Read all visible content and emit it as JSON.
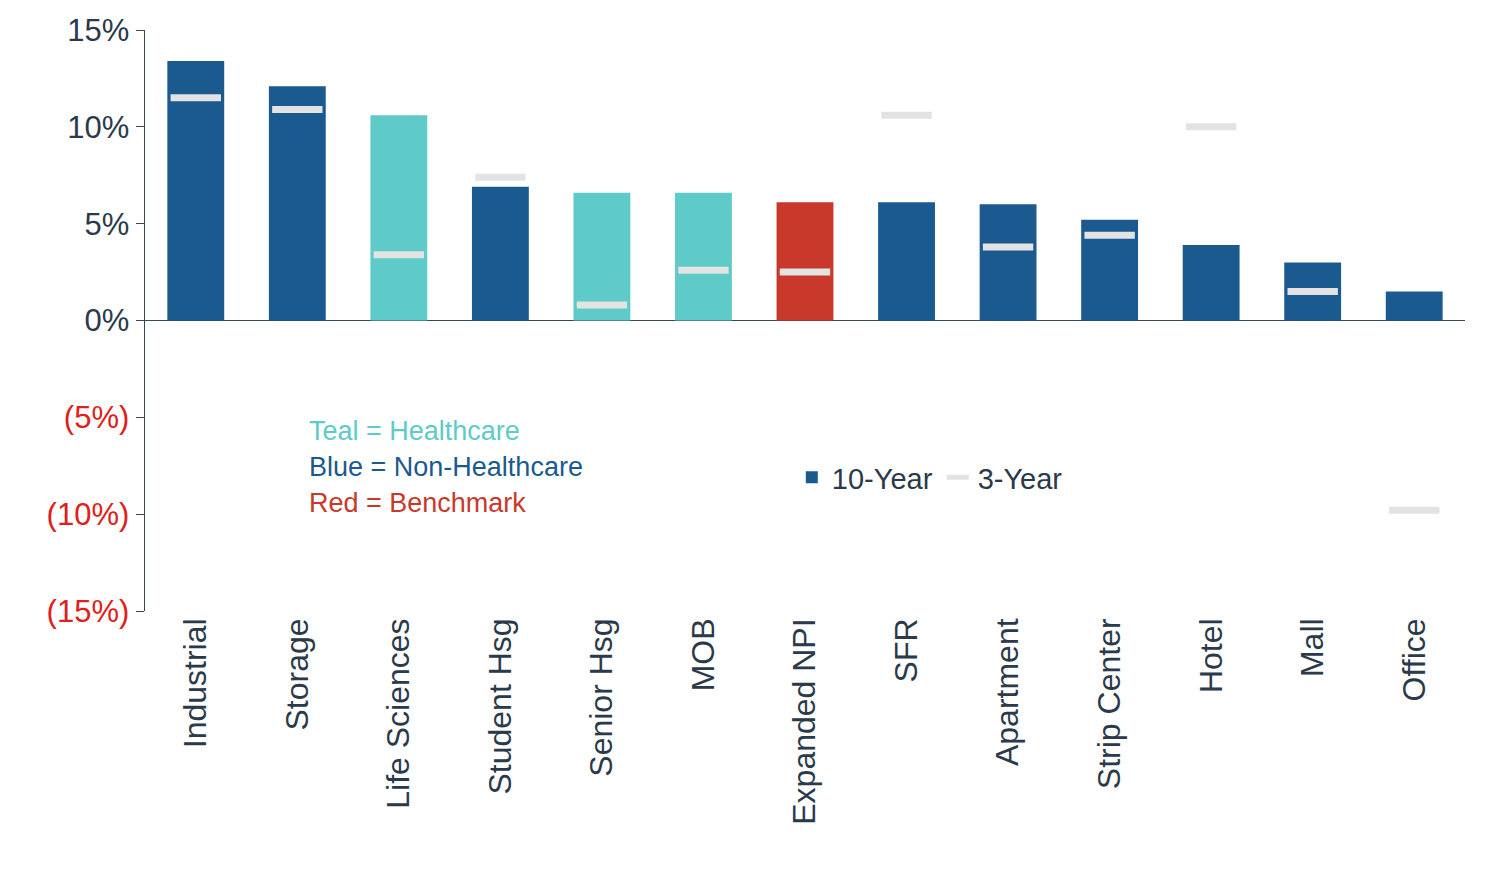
{
  "chart_data": {
    "type": "bar",
    "categories": [
      "Industrial",
      "Storage",
      "Life Sciences",
      "Student Hsg",
      "Senior Hsg",
      "MOB",
      "Expanded NPI",
      "SFR",
      "Apartment",
      "Strip Center",
      "Hotel",
      "Mall",
      "Office"
    ],
    "series": [
      {
        "name": "10-Year",
        "type": "bar",
        "colors": [
          "#1a5a8e",
          "#1a5a8e",
          "#5ecbc8",
          "#1a5a8e",
          "#5ecbc8",
          "#5ecbc8",
          "#c8392b",
          "#1a5a8e",
          "#1a5a8e",
          "#1a5a8e",
          "#1a5a8e",
          "#1a5a8e",
          "#1a5a8e"
        ],
        "values": [
          13.4,
          12.1,
          10.6,
          6.9,
          6.6,
          6.6,
          6.1,
          6.1,
          6.0,
          5.2,
          3.9,
          3.0,
          1.5
        ]
      },
      {
        "name": "3-Year",
        "type": "scatter",
        "marker": "line-ew",
        "color": "#e3e3e3",
        "values": [
          11.5,
          10.9,
          3.4,
          7.4,
          0.8,
          2.6,
          2.5,
          10.6,
          3.8,
          4.4,
          10.0,
          1.5,
          -9.8
        ]
      }
    ],
    "ylim": [
      -15,
      15
    ],
    "yticks": [
      {
        "value": -15,
        "label": "(15%)"
      },
      {
        "value": -10,
        "label": "(10%)"
      },
      {
        "value": -5,
        "label": "(5%)"
      },
      {
        "value": 0,
        "label": "0%"
      },
      {
        "value": 5,
        "label": "5%"
      },
      {
        "value": 10,
        "label": "10%"
      },
      {
        "value": 15,
        "label": "15%"
      }
    ],
    "grid": false,
    "legend": "bottom",
    "annotations": [
      {
        "text": "Teal = Healthcare",
        "color": "#5ecbc8"
      },
      {
        "text": "Blue = Non-Healthcare",
        "color": "#1a5a8e"
      },
      {
        "text": "Red = Benchmark",
        "color": "#c8392b"
      }
    ]
  }
}
